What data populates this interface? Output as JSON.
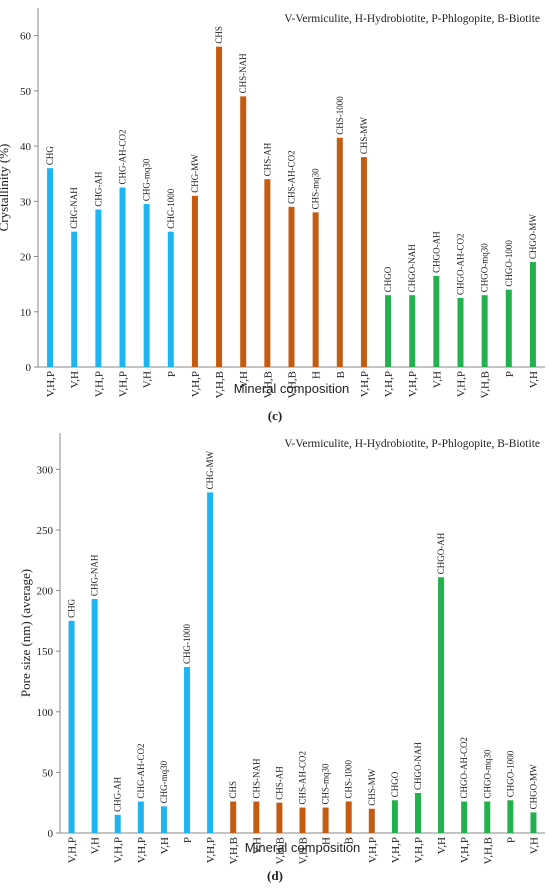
{
  "chart_data": [
    {
      "type": "bar",
      "ylabel": "Crystallinity (%)",
      "xlabel": "Mineral composition",
      "caption": "(c)",
      "note": "V-Vermiculite, H-Hydrobiotite, P-Phlogopite, B-Biotite",
      "categories": [
        "V,H,P",
        "V,H",
        "V,H,P",
        "V,H,P",
        "V,H",
        "P",
        "V,H,P",
        "V,H,B",
        "V,H",
        "V,H,B",
        "V,H,B",
        "H",
        "B",
        "V,H,P",
        "V,H,P",
        "V,H,P",
        "V,H",
        "V,H,P",
        "V,H,B",
        "P",
        "V,H"
      ],
      "bar_labels": [
        "CHG",
        "CHG-NAH",
        "CHG-AH",
        "CHG-AH-CO2",
        "CHG-mq30",
        "CHG-1000",
        "CHG-MW",
        "CHS",
        "CHS-NAH",
        "CHS-AH",
        "CHS-AH-CO2",
        "CHS-mq30",
        "CHS-1000",
        "CHS-MW",
        "CHGO",
        "CHGO-NAH",
        "CHGO-AH",
        "CHGO-AH-CO2",
        "CHGO-mq30",
        "CHGO-1000",
        "CHGO-MW"
      ],
      "values": [
        36,
        24.5,
        28.5,
        32.5,
        29.5,
        24.5,
        31,
        58,
        49,
        34,
        29,
        28,
        41.5,
        38,
        13,
        13,
        16.5,
        12.5,
        13,
        14,
        19
      ],
      "colors": [
        "#1fb4ef",
        "#1fb4ef",
        "#1fb4ef",
        "#1fb4ef",
        "#1fb4ef",
        "#1fb4ef",
        "#c55a11",
        "#c55a11",
        "#c55a11",
        "#c55a11",
        "#c55a11",
        "#c55a11",
        "#c55a11",
        "#c55a11",
        "#22b14c",
        "#22b14c",
        "#22b14c",
        "#22b14c",
        "#22b14c",
        "#22b14c",
        "#22b14c"
      ],
      "ylim": [
        0,
        65
      ],
      "yticks": [
        0,
        10,
        20,
        30,
        40,
        50,
        60
      ]
    },
    {
      "type": "bar",
      "ylabel": "Pore size (nm) (average)",
      "xlabel": "Mineral composition",
      "caption": "(d)",
      "note": "V-Vermiculite, H-Hydrobiotite, P-Phlogopite, B-Biotite",
      "categories": [
        "V,H,P",
        "V,H",
        "V,H,P",
        "V,H,P",
        "V,H",
        "P",
        "V,H,P",
        "V,H,B",
        "V,H",
        "V,H,B",
        "V,H,B",
        "H",
        "B",
        "V,H,P",
        "V,H,P",
        "V,H,P",
        "V,H",
        "V,H,P",
        "V,H,B",
        "P",
        "V,H"
      ],
      "bar_labels": [
        "CHG",
        "CHG-NAH",
        "CHG-AH",
        "CHG-AH-CO2",
        "CHG-mq30",
        "CHG-1000",
        "CHG-MW",
        "CHS",
        "CHS-NAH",
        "CHS-AH",
        "CHS-AH-CO2",
        "CHS-mq30",
        "CHS-1000",
        "CHS-MW",
        "CHGO",
        "CHGO-NAH",
        "CHGO-AH",
        "CHGO-AH-CO2",
        "CHGO-mq30",
        "CHGO-1000",
        "CHGO-MW"
      ],
      "values": [
        175,
        193,
        15,
        26,
        22,
        137,
        281,
        26,
        26,
        25,
        21,
        21,
        26,
        20,
        27,
        33,
        211,
        26,
        26,
        27,
        17
      ],
      "colors": [
        "#1fb4ef",
        "#1fb4ef",
        "#1fb4ef",
        "#1fb4ef",
        "#1fb4ef",
        "#1fb4ef",
        "#1fb4ef",
        "#c55a11",
        "#c55a11",
        "#c55a11",
        "#c55a11",
        "#c55a11",
        "#c55a11",
        "#c55a11",
        "#22b14c",
        "#22b14c",
        "#22b14c",
        "#22b14c",
        "#22b14c",
        "#22b14c",
        "#22b14c"
      ],
      "ylim": [
        0,
        330
      ],
      "yticks": [
        0,
        50,
        100,
        150,
        200,
        250,
        300
      ]
    }
  ]
}
